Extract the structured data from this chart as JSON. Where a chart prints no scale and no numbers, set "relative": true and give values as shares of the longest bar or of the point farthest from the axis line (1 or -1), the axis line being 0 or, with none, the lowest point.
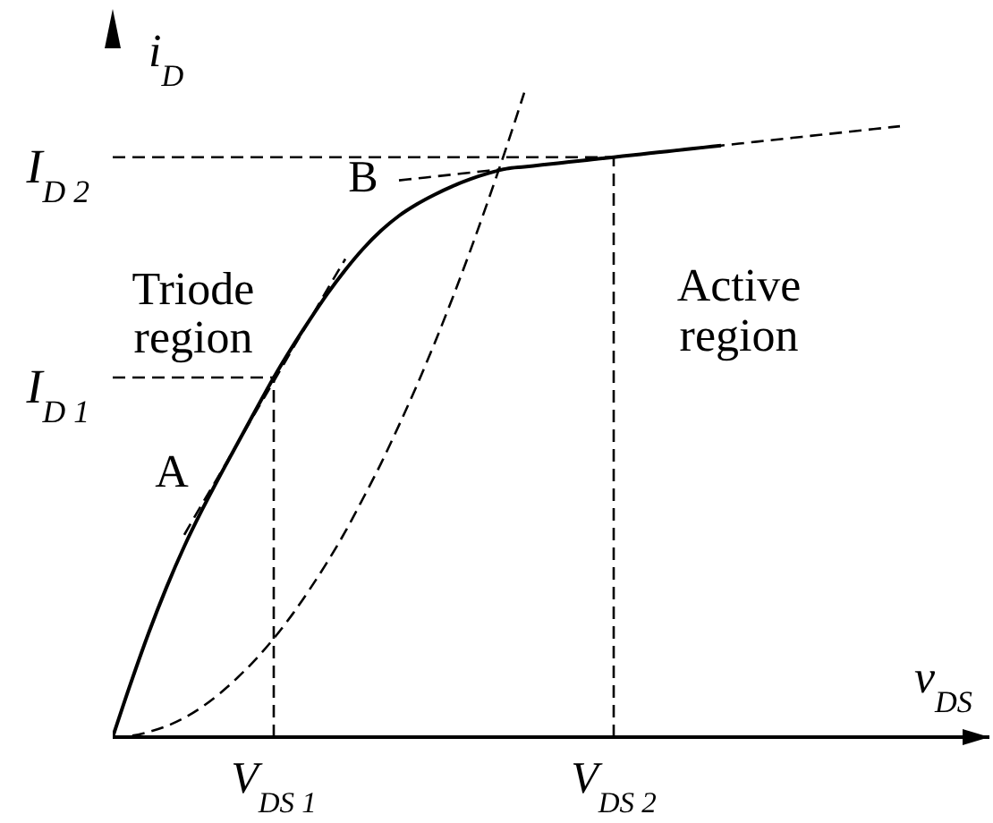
{
  "chart_data": {
    "type": "line",
    "relative": true,
    "xlabel": "v$_{DS}$",
    "ylabel": "i$_{D}$",
    "tick_labels": "x",
    "categories": [
      null,
      null,
      null,
      null,
      null,
      null,
      null,
      null,
      null,
      "V$_{DS 1}$",
      null,
      null,
      null,
      null,
      null,
      null,
      null,
      null,
      null,
      null,
      null,
      null,
      null,
      null,
      null,
      null,
      null,
      null,
      "V$_{DS 2}$",
      null,
      null,
      null,
      null,
      null,
      null,
      null,
      null,
      null,
      null,
      null,
      null,
      null,
      null,
      null,
      null,
      null,
      null,
      null,
      null,
      null
    ],
    "series": [
      {
        "color": "#000000",
        "line_style": "solid",
        "values": [
          0,
          0.083,
          0.161,
          0.232,
          0.296,
          0.353,
          0.406,
          0.457,
          0.508,
          0.558,
          0.604,
          0.647,
          0.688,
          0.725,
          0.758,
          0.786,
          0.809,
          0.827,
          0.842,
          0.855,
          0.866,
          0.875,
          0.882,
          0.885,
          0.888,
          0.891,
          0.894,
          0.897,
          0.9,
          0.903,
          0.906,
          0.909,
          0.912,
          0.915,
          0.918,
          null,
          null,
          null,
          null,
          null,
          null,
          null,
          null,
          null,
          null,
          null,
          null,
          null,
          null,
          null
        ]
      },
      {
        "color": "#000000",
        "line_style": "dashed",
        "values": [
          0,
          0.002,
          0.008,
          0.017,
          0.03,
          0.047,
          0.068,
          0.093,
          0.121,
          0.153,
          0.189,
          0.229,
          0.272,
          0.319,
          0.371,
          0.425,
          0.484,
          0.546,
          0.612,
          0.682,
          0.756,
          0.834,
          0.915,
          1,
          null,
          null,
          null,
          null,
          null,
          null,
          null,
          null,
          null,
          null,
          null,
          null,
          null,
          null,
          null,
          null,
          null,
          null,
          null,
          null,
          null,
          null,
          null,
          null,
          null,
          null
        ]
      },
      {
        "color": "#000000",
        "line_style": "dashed",
        "values": [
          null,
          null,
          null,
          null,
          0.314,
          0.362,
          0.409,
          0.457,
          0.505,
          0.552,
          0.6,
          0.647,
          0.695,
          0.742,
          null,
          null,
          null,
          null,
          null,
          null,
          null,
          null,
          null,
          null,
          null,
          null,
          null,
          null,
          null,
          null,
          null,
          null,
          null,
          null,
          null,
          null,
          null,
          null,
          null,
          null,
          null,
          null,
          null,
          null,
          null,
          null,
          null,
          null,
          null,
          null
        ]
      },
      {
        "color": "#000000",
        "line_style": "dashed",
        "values": [
          null,
          null,
          null,
          null,
          null,
          null,
          null,
          null,
          null,
          null,
          null,
          null,
          null,
          null,
          null,
          null,
          0.864,
          0.867,
          0.87,
          0.873,
          0.876,
          0.879,
          0.882,
          0.885,
          0.888,
          0.891,
          0.894,
          0.897,
          0.9,
          0.903,
          0.906,
          0.909,
          0.912,
          0.915,
          0.918,
          0.921,
          0.924,
          0.927,
          0.93,
          0.933,
          0.936,
          0.939,
          0.942,
          0.945,
          0.948,
          null,
          null,
          null,
          null,
          null
        ]
      }
    ],
    "ref_lines": [
      {
        "axis": "y",
        "value": 0.558,
        "label": "I$_{D 1}$",
        "line_style": "dashed",
        "color": "#000000"
      },
      {
        "axis": "y",
        "value": 0.9,
        "label": "I$_{D 2}$",
        "line_style": "dashed",
        "color": "#000000"
      }
    ],
    "annotations": [
      "A",
      "B",
      "Triode region",
      "Active region"
    ]
  }
}
